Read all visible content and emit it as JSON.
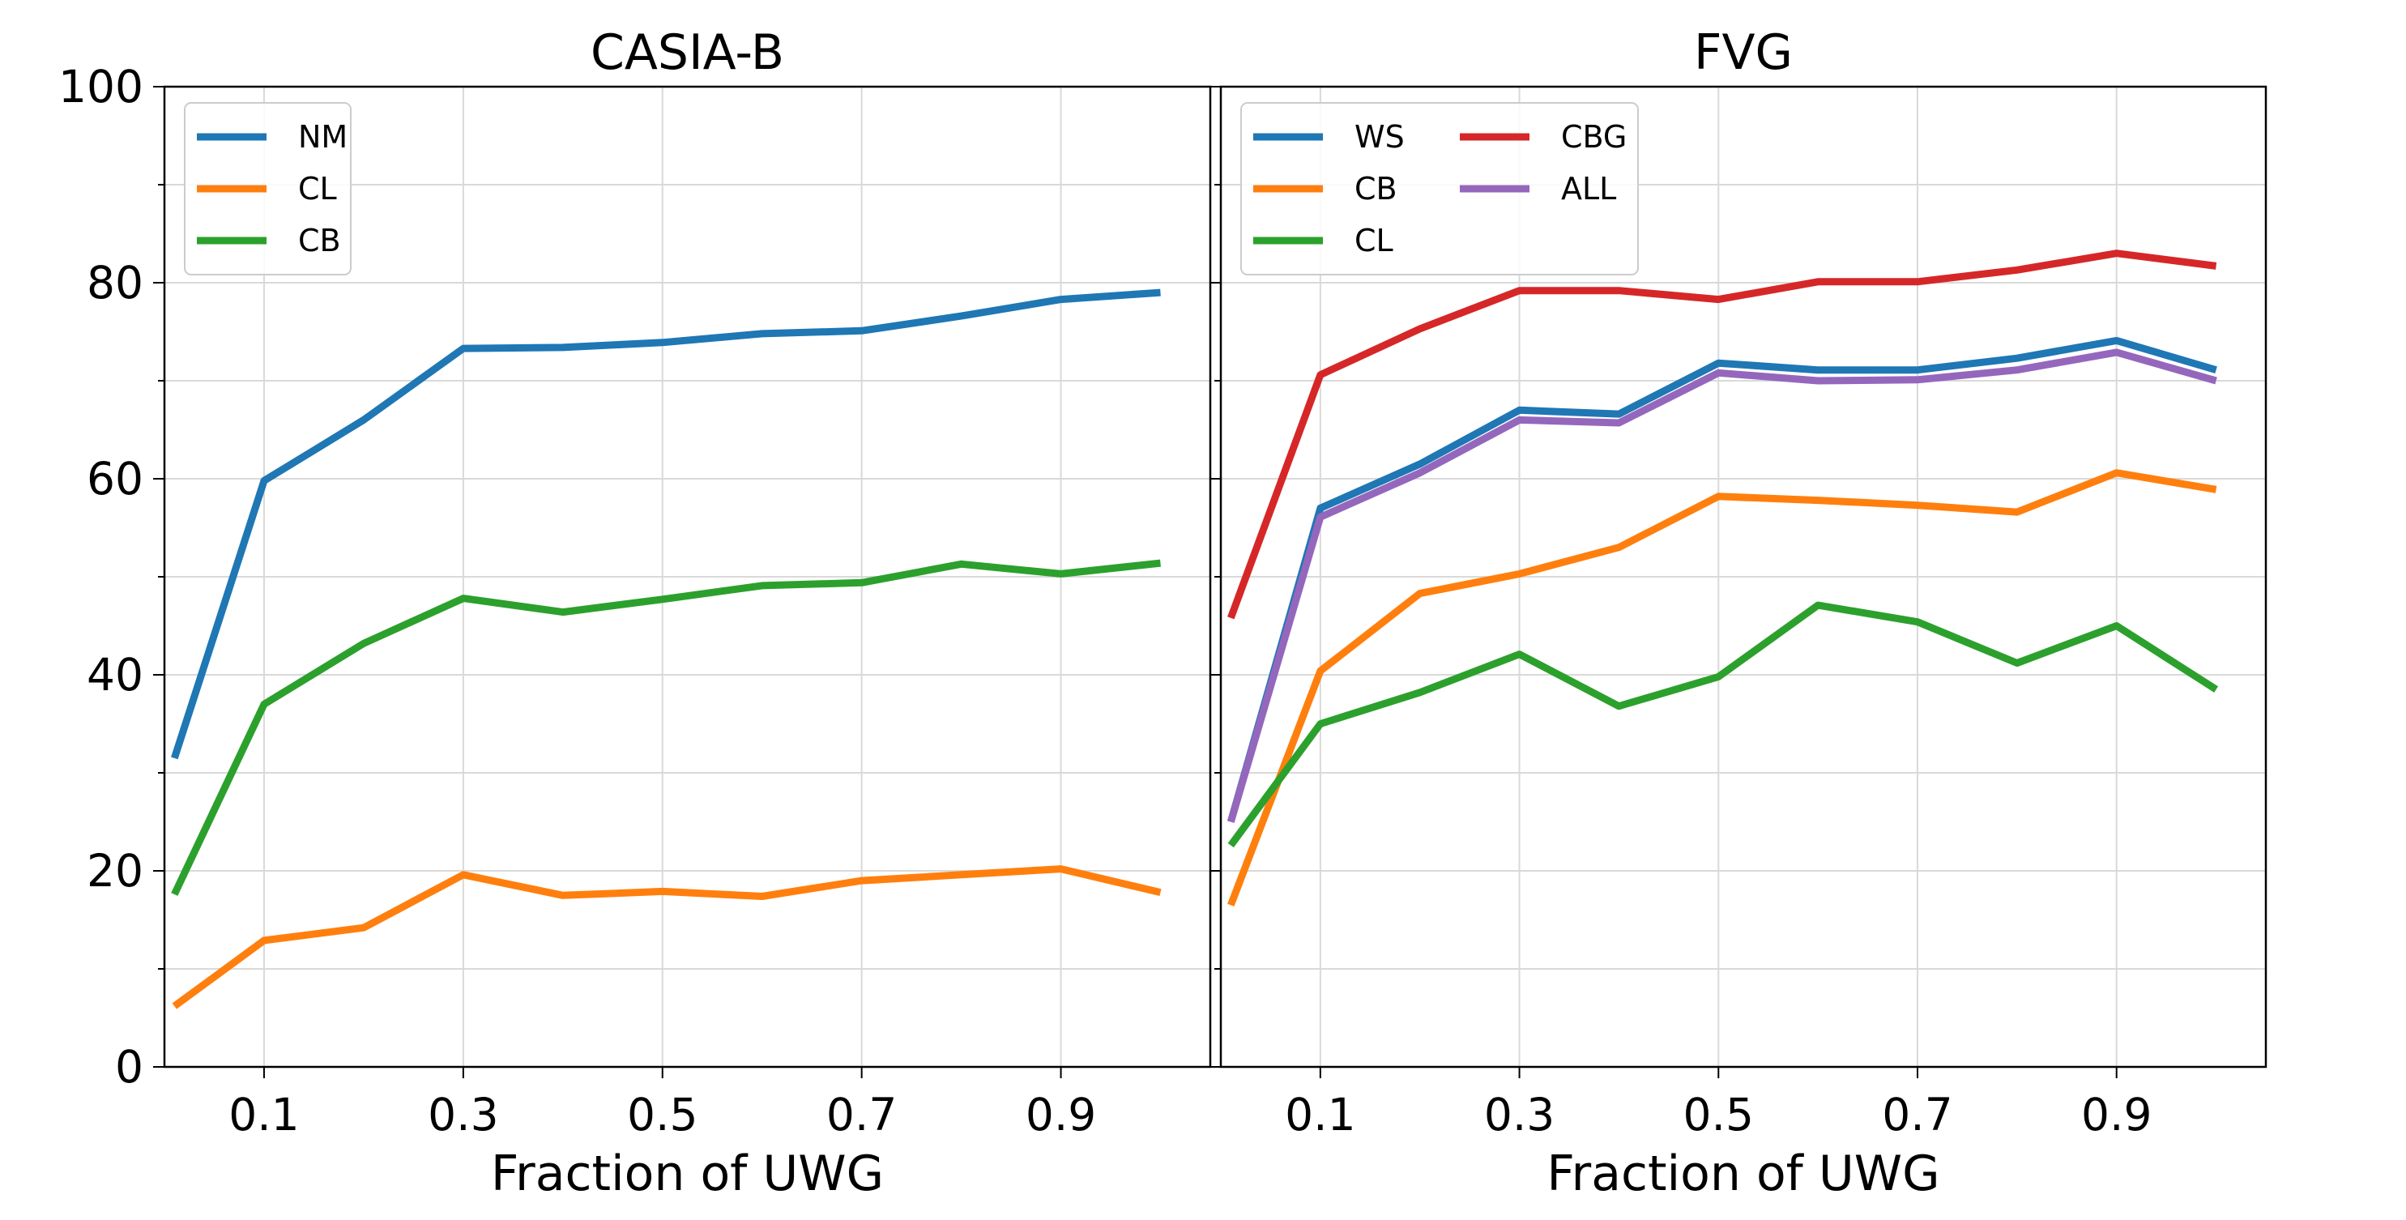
{
  "chart_data": [
    {
      "type": "line",
      "title": "CASIA-B",
      "xlabel": "Fraction of UWG",
      "ylabel": "",
      "x": [
        0.01,
        0.1,
        0.2,
        0.3,
        0.4,
        0.5,
        0.6,
        0.7,
        0.8,
        0.9,
        1.0
      ],
      "xticks": [
        0.1,
        0.3,
        0.5,
        0.7,
        0.9
      ],
      "xtick_labels": [
        "0.1",
        "0.3",
        "0.5",
        "0.7",
        "0.9"
      ],
      "yticks": [
        0,
        20,
        40,
        60,
        80,
        100
      ],
      "ytick_labels": [
        "0",
        "20",
        "40",
        "60",
        "80",
        "100"
      ],
      "ylim": [
        0,
        100
      ],
      "grid": true,
      "legend_position": "top-left",
      "legend_columns": 1,
      "series": [
        {
          "name": "NM",
          "color": "#1f77b4",
          "values": [
            31.5,
            59.8,
            66.0,
            73.3,
            73.4,
            73.9,
            74.8,
            75.1,
            76.6,
            78.3,
            79.0
          ]
        },
        {
          "name": "CL",
          "color": "#ff7f0e",
          "values": [
            6.2,
            12.9,
            14.2,
            19.6,
            17.5,
            17.9,
            17.4,
            19.0,
            19.6,
            20.2,
            17.8
          ]
        },
        {
          "name": "CB",
          "color": "#2ca02c",
          "values": [
            17.6,
            37.0,
            43.2,
            47.8,
            46.4,
            47.7,
            49.1,
            49.4,
            51.3,
            50.3,
            51.4
          ]
        }
      ]
    },
    {
      "type": "line",
      "title": "FVG",
      "xlabel": "Fraction of UWG",
      "ylabel": "",
      "x": [
        0.01,
        0.1,
        0.2,
        0.3,
        0.4,
        0.5,
        0.6,
        0.7,
        0.8,
        0.9,
        1.0
      ],
      "xticks": [
        0.1,
        0.3,
        0.5,
        0.7,
        0.9
      ],
      "xtick_labels": [
        "0.1",
        "0.3",
        "0.5",
        "0.7",
        "0.9"
      ],
      "yticks": [
        0,
        20,
        40,
        60,
        80,
        100
      ],
      "ylim": [
        0,
        100
      ],
      "grid": true,
      "legend_position": "top-left",
      "legend_columns": 2,
      "series": [
        {
          "name": "WS",
          "color": "#1f77b4",
          "values": [
            25.0,
            57.0,
            61.5,
            67.0,
            66.6,
            71.8,
            71.1,
            71.1,
            72.3,
            74.1,
            71.1
          ]
        },
        {
          "name": "CB",
          "color": "#ff7f0e",
          "values": [
            16.5,
            40.4,
            48.3,
            50.3,
            53.0,
            58.2,
            57.8,
            57.3,
            56.6,
            60.6,
            58.9
          ]
        },
        {
          "name": "CL",
          "color": "#2ca02c",
          "values": [
            22.6,
            35.0,
            38.2,
            42.1,
            36.8,
            39.8,
            47.1,
            45.4,
            41.2,
            45.0,
            38.5
          ]
        },
        {
          "name": "CBG",
          "color": "#d62728",
          "values": [
            45.8,
            70.6,
            75.3,
            79.2,
            79.2,
            78.3,
            80.1,
            80.1,
            81.3,
            83.0,
            81.7
          ]
        },
        {
          "name": "ALL",
          "color": "#9467bd",
          "values": [
            25.0,
            56.1,
            60.6,
            66.0,
            65.7,
            70.8,
            70.0,
            70.1,
            71.1,
            72.9,
            70.0
          ]
        }
      ]
    }
  ]
}
